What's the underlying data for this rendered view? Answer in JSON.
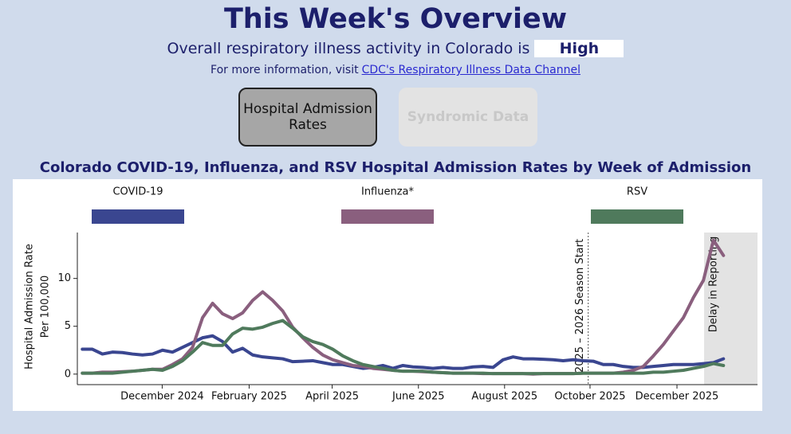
{
  "header": {
    "title": "This Week's Overview",
    "activity_text": "Overall respiratory illness activity in Colorado is",
    "activity_level": "High",
    "info_text": "For more information, visit",
    "link_text": "CDC's Respiratory Illness Data Channel"
  },
  "tabs": [
    "Hospital Admission Rates",
    "Syndromic Data"
  ],
  "chart_data": {
    "type": "line",
    "title": "Colorado COVID-19, Influenza, and RSV Hospital Admission Rates by Week of Admission",
    "y_label": [
      "Hospital Admission Rate",
      "Per 100,000"
    ],
    "categories": [
      null,
      null,
      null,
      null,
      null,
      null,
      null,
      null,
      null,
      null,
      null,
      null,
      null,
      null,
      null,
      null,
      null,
      null,
      null,
      null,
      null,
      null,
      null,
      null,
      null,
      null,
      null,
      null,
      null,
      null,
      null,
      null,
      null,
      null,
      null,
      null,
      null,
      null,
      null,
      null,
      null,
      null,
      null,
      null,
      null,
      null,
      null,
      null,
      null,
      null,
      null,
      null,
      null,
      null,
      null,
      null,
      null,
      null,
      null,
      null,
      null,
      null,
      null,
      null,
      null
    ],
    "xlim": [
      -0.5,
      67.4
    ],
    "xticks": [
      {
        "value": 7.97,
        "label": "December 2024"
      },
      {
        "value": 16.65,
        "label": "February 2025"
      },
      {
        "value": 24.94,
        "label": "April 2025"
      },
      {
        "value": 33.55,
        "label": "June 2025"
      },
      {
        "value": 42.15,
        "label": "August 2025"
      },
      {
        "value": 50.68,
        "label": "October 2025"
      },
      {
        "value": 59.36,
        "label": "December 2025"
      }
    ],
    "ylim": [
      -1.1,
      14.8
    ],
    "yticks": [
      0,
      5,
      10
    ],
    "legend": "top",
    "annotations": [
      {
        "text": "2025 – 2026 Season Start",
        "x": 50.5
      },
      {
        "text": "Delay in Reporting",
        "x": 62.07
      }
    ],
    "series": [
      {
        "name": "COVID-19",
        "color": "#3a4690",
        "values": [
          2.6,
          2.6,
          2.1,
          2.3,
          2.25,
          2.1,
          2.0,
          2.1,
          2.5,
          2.3,
          2.8,
          3.3,
          3.8,
          4.0,
          3.4,
          2.3,
          2.7,
          2.0,
          1.8,
          1.7,
          1.6,
          1.3,
          1.35,
          1.4,
          1.2,
          1.0,
          1.0,
          0.8,
          0.6,
          0.7,
          0.9,
          0.6,
          0.9,
          0.75,
          0.7,
          0.6,
          0.7,
          0.6,
          0.6,
          0.75,
          0.8,
          0.7,
          1.5,
          1.8,
          1.6,
          1.6,
          1.55,
          1.5,
          1.4,
          1.5,
          1.4,
          1.35,
          1.0,
          1.0,
          0.8,
          0.7,
          0.7,
          0.8,
          0.9,
          1.0,
          1.0,
          1.0,
          1.1,
          1.2,
          1.6
        ]
      },
      {
        "name": "Influenza*",
        "color": "#8a5f7e",
        "values": [
          0.1,
          0.1,
          0.2,
          0.2,
          0.25,
          0.3,
          0.4,
          0.5,
          0.5,
          1.0,
          1.6,
          2.8,
          5.9,
          7.4,
          6.3,
          5.8,
          6.4,
          7.7,
          8.6,
          7.7,
          6.6,
          4.9,
          3.8,
          2.8,
          2.0,
          1.5,
          1.2,
          0.9,
          0.8,
          0.6,
          0.5,
          0.4,
          0.3,
          0.3,
          0.25,
          0.2,
          0.15,
          0.1,
          0.1,
          0.1,
          0.05,
          0.05,
          0.05,
          0.05,
          0.05,
          0,
          0.05,
          0.05,
          0.05,
          0.05,
          0.1,
          0.1,
          0.1,
          0.1,
          0.2,
          0.4,
          0.8,
          1.9,
          3.1,
          4.5,
          5.9,
          8.0,
          9.8,
          14.0,
          12.4
        ]
      },
      {
        "name": "RSV",
        "color": "#4f7a5c",
        "values": [
          0.1,
          0.1,
          0.1,
          0.1,
          0.2,
          0.3,
          0.4,
          0.5,
          0.4,
          0.8,
          1.4,
          2.3,
          3.3,
          3.0,
          3.0,
          4.2,
          4.8,
          4.7,
          4.9,
          5.3,
          5.6,
          4.8,
          3.9,
          3.4,
          3.1,
          2.6,
          1.9,
          1.4,
          1.0,
          0.8,
          0.6,
          0.4,
          0.3,
          0.3,
          0.3,
          0.2,
          0.15,
          0.1,
          0.1,
          0.1,
          0.1,
          0.05,
          0.05,
          0.05,
          0.05,
          0.05,
          0.05,
          0.05,
          0.05,
          0.05,
          0.1,
          0.1,
          0.1,
          0.1,
          0.1,
          0.1,
          0.1,
          0.2,
          0.2,
          0.3,
          0.4,
          0.6,
          0.8,
          1.1,
          0.9
        ]
      }
    ]
  }
}
